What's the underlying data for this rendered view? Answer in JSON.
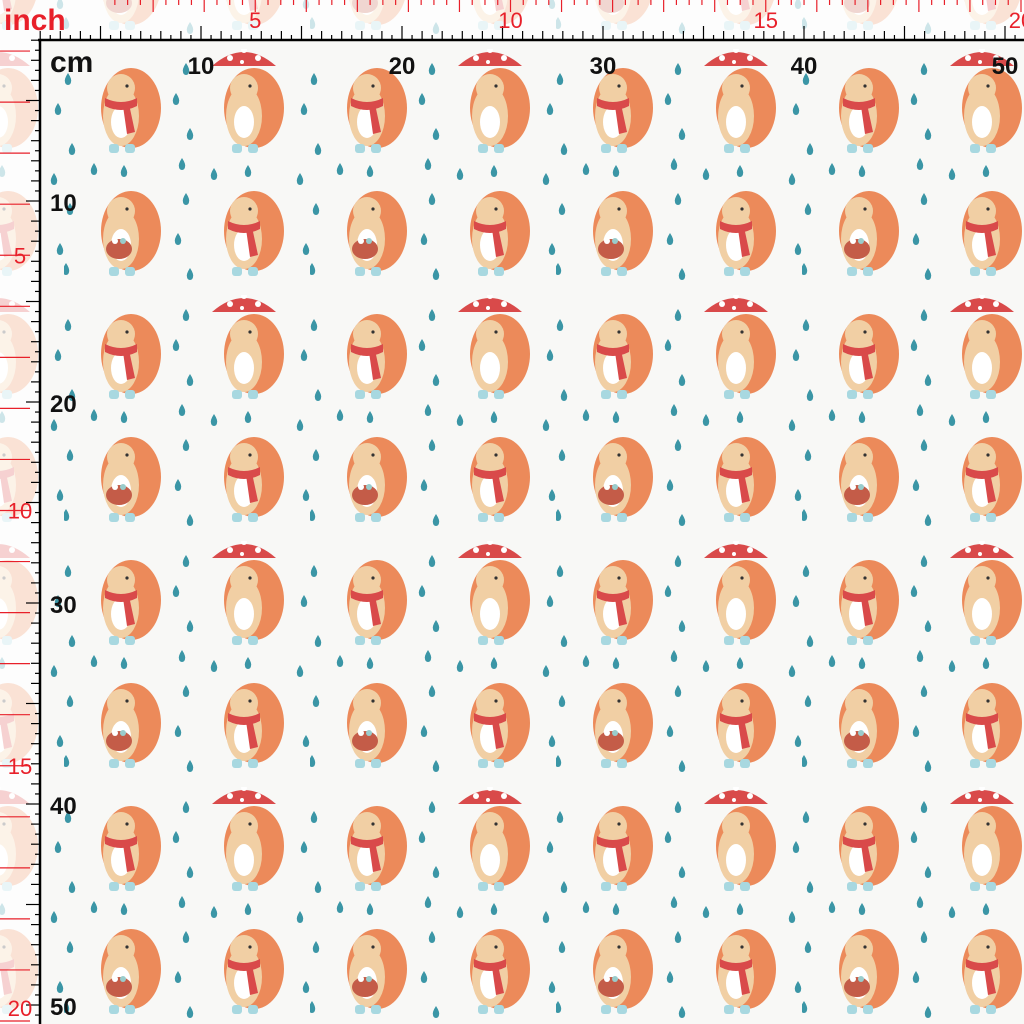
{
  "ruler": {
    "inch_unit": "inch",
    "cm_unit": "cm",
    "top_inch_labels": [
      "5",
      "10",
      "15",
      "20"
    ],
    "top_cm_labels": [
      "10",
      "20",
      "30",
      "40",
      "50"
    ],
    "left_cm_labels": [
      "10",
      "20",
      "30",
      "40",
      "50"
    ],
    "left_inch_labels": [
      "5",
      "10",
      "15",
      "20"
    ]
  }
}
